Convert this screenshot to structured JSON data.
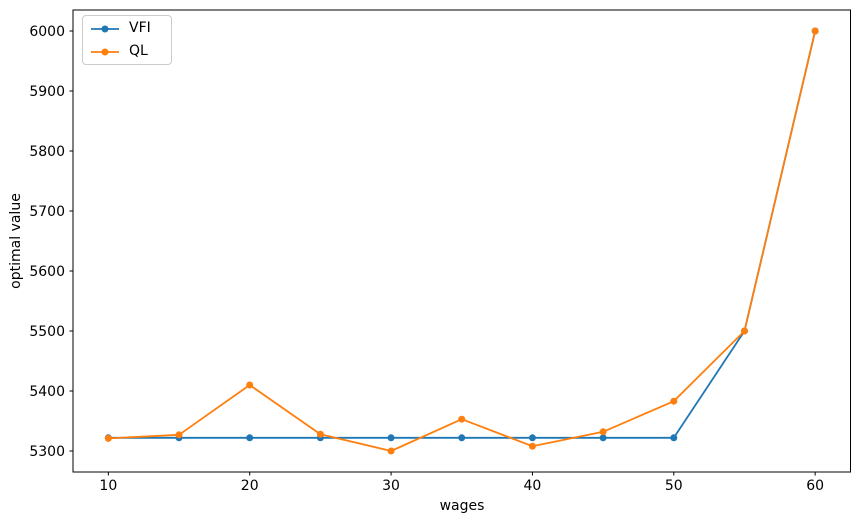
{
  "chart_data": {
    "type": "line",
    "title": "",
    "xlabel": "wages",
    "ylabel": "optimal value",
    "x": [
      10,
      15,
      20,
      25,
      30,
      35,
      40,
      45,
      50,
      55,
      60
    ],
    "series": [
      {
        "name": "VFI",
        "color": "#1f77b4",
        "marker": "circle",
        "values": [
          5322,
          5322,
          5322,
          5322,
          5322,
          5322,
          5322,
          5322,
          5322,
          5500,
          6000
        ]
      },
      {
        "name": "QL",
        "color": "#ff7f0e",
        "marker": "circle",
        "values": [
          5321,
          5327,
          5410,
          5328,
          5300,
          5353,
          5308,
          5332,
          5383,
          5500,
          6000
        ]
      }
    ],
    "xticks": [
      10,
      20,
      30,
      40,
      50,
      60
    ],
    "yticks": [
      5300,
      5400,
      5500,
      5600,
      5700,
      5800,
      5900,
      6000
    ],
    "xlim": [
      7.5,
      62.5
    ],
    "ylim": [
      5265,
      6035
    ],
    "grid": false,
    "legend_position": "upper-left",
    "axis_color": "#000000",
    "background": "#ffffff"
  }
}
